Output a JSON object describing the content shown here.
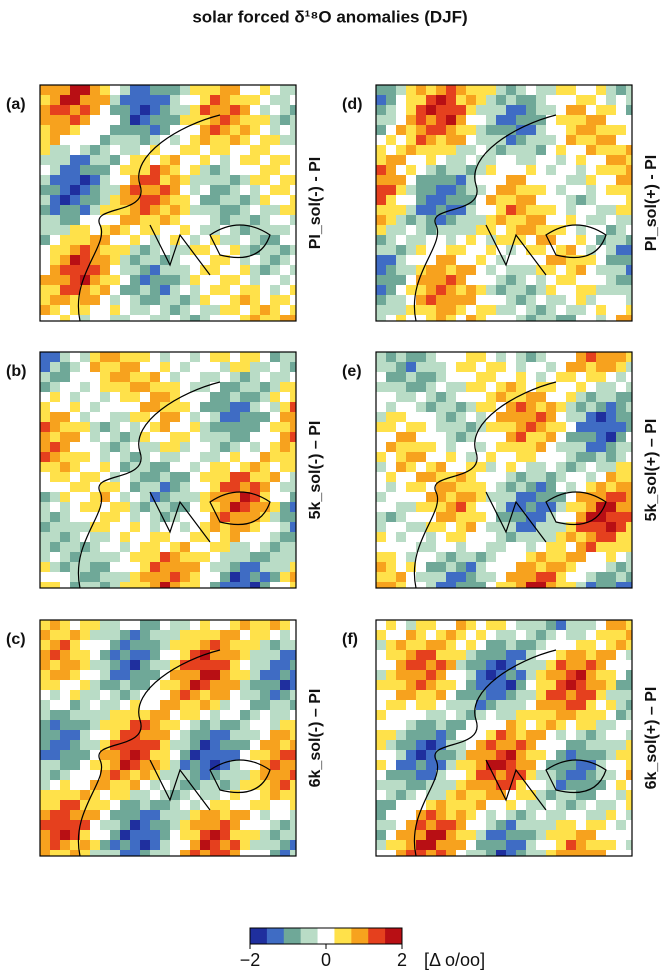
{
  "title": "solar forced δ¹⁸O anomalies (DJF)",
  "panels": [
    {
      "label": "(a)",
      "title": "PI_sol(-) - PI"
    },
    {
      "label": "(b)",
      "title": "5k_sol(-) – PI"
    },
    {
      "label": "(c)",
      "title": "6k_sol(-) – PI"
    },
    {
      "label": "(d)",
      "title": "PI_sol(+) - PI"
    },
    {
      "label": "(e)",
      "title": "5k_sol(+) – PI"
    },
    {
      "label": "(f)",
      "title": "6k_sol(+) – PI"
    }
  ],
  "colorbar": {
    "lim": [
      -2,
      2
    ],
    "ticks": [
      {
        "value": -2,
        "label": "−2"
      },
      0,
      2
    ],
    "label": "[Δ o/oo]",
    "colors": [
      "#1f2f9e",
      "#3f6cc4",
      "#6fa898",
      "#b9dcc6",
      "#ffffff",
      "#ffe14a",
      "#f7a21e",
      "#e5401e",
      "#b80f14"
    ]
  }
}
